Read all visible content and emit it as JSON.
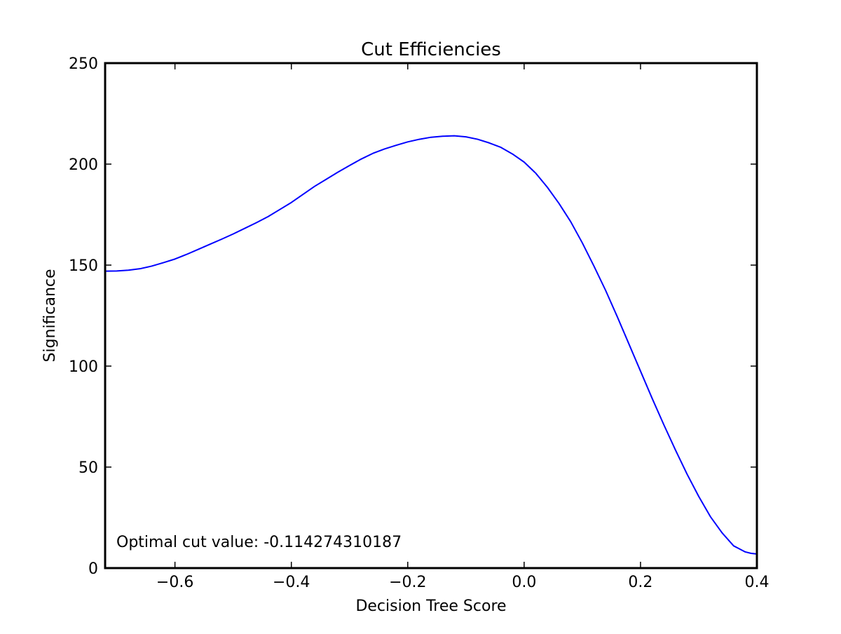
{
  "chart_data": {
    "type": "line",
    "title": "Cut Efficiencies",
    "xlabel": "Decision Tree Score",
    "ylabel": "Significance",
    "xlim": [
      -0.72,
      0.4
    ],
    "ylim": [
      0,
      250
    ],
    "xticks": [
      {
        "value": -0.6,
        "label": "−0.6"
      },
      {
        "value": -0.4,
        "label": "−0.4"
      },
      {
        "value": -0.2,
        "label": "−0.2"
      },
      {
        "value": 0.0,
        "label": "0.0"
      },
      {
        "value": 0.2,
        "label": "0.2"
      },
      {
        "value": 0.4,
        "label": "0.4"
      }
    ],
    "yticks": [
      {
        "value": 0,
        "label": "0"
      },
      {
        "value": 50,
        "label": "50"
      },
      {
        "value": 100,
        "label": "100"
      },
      {
        "value": 150,
        "label": "150"
      },
      {
        "value": 200,
        "label": "200"
      },
      {
        "value": 250,
        "label": "250"
      }
    ],
    "grid": false,
    "annotation": "Optimal cut value: -0.114274310187",
    "line_color": "#0000ff",
    "series": [
      {
        "x": [
          -0.72,
          -0.7,
          -0.68,
          -0.66,
          -0.64,
          -0.62,
          -0.6,
          -0.58,
          -0.56,
          -0.54,
          -0.52,
          -0.5,
          -0.48,
          -0.46,
          -0.44,
          -0.42,
          -0.4,
          -0.38,
          -0.36,
          -0.34,
          -0.32,
          -0.3,
          -0.28,
          -0.26,
          -0.24,
          -0.22,
          -0.2,
          -0.18,
          -0.16,
          -0.14,
          -0.12,
          -0.1,
          -0.08,
          -0.06,
          -0.04,
          -0.02,
          0.0,
          0.02,
          0.04,
          0.06,
          0.08,
          0.1,
          0.12,
          0.14,
          0.16,
          0.18,
          0.2,
          0.22,
          0.24,
          0.26,
          0.28,
          0.3,
          0.32,
          0.34,
          0.36,
          0.37,
          0.38,
          0.39,
          0.4
        ],
        "y": [
          147.0,
          147.1,
          147.5,
          148.2,
          149.5,
          151.2,
          153.0,
          155.3,
          157.8,
          160.3,
          162.8,
          165.4,
          168.2,
          171.0,
          174.0,
          177.5,
          181.0,
          185.0,
          189.0,
          192.5,
          196.0,
          199.3,
          202.5,
          205.3,
          207.5,
          209.3,
          211.0,
          212.3,
          213.3,
          213.8,
          214.0,
          213.5,
          212.3,
          210.5,
          208.3,
          205.0,
          201.0,
          195.5,
          188.5,
          180.5,
          171.5,
          161.0,
          149.5,
          137.5,
          124.5,
          111.0,
          97.5,
          84.0,
          71.0,
          58.5,
          46.5,
          35.5,
          25.5,
          17.5,
          11.0,
          9.5,
          8.0,
          7.3,
          7.0
        ]
      }
    ]
  }
}
